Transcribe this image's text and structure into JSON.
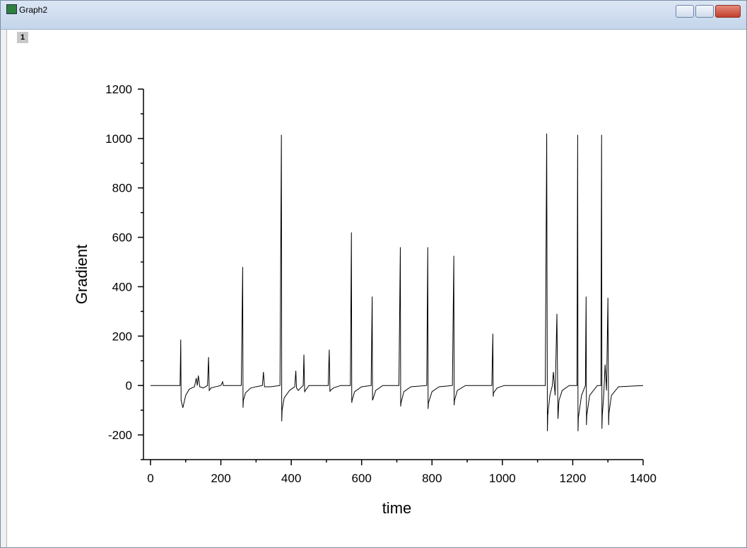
{
  "window": {
    "title": "Graph2",
    "layer": "1"
  },
  "chart_data": {
    "type": "line",
    "xlabel": "time",
    "ylabel": "Gradient",
    "x": [
      0,
      84,
      86,
      87,
      92,
      100,
      110,
      125,
      130,
      133,
      136,
      140,
      150,
      162,
      165,
      167,
      172,
      185,
      200,
      205,
      207,
      210,
      230,
      258,
      262,
      263,
      264,
      270,
      285,
      300,
      318,
      321,
      324,
      340,
      368,
      372,
      373,
      374,
      380,
      395,
      410,
      413,
      415,
      420,
      430,
      434,
      436,
      438,
      450,
      505,
      508,
      510,
      511,
      520,
      540,
      568,
      571,
      572,
      573,
      580,
      600,
      627,
      630,
      631,
      640,
      660,
      706,
      710,
      711,
      712,
      720,
      740,
      785,
      788,
      789,
      790,
      800,
      820,
      858,
      862,
      863,
      864,
      872,
      895,
      970,
      973,
      974,
      975,
      985,
      1005,
      1122,
      1126,
      1128,
      1129,
      1135,
      1142,
      1145,
      1150,
      1155,
      1158,
      1160,
      1161,
      1170,
      1190,
      1212,
      1214,
      1215,
      1216,
      1225,
      1236,
      1238,
      1239,
      1240,
      1248,
      1270,
      1280,
      1282,
      1283,
      1284,
      1288,
      1292,
      1296,
      1300,
      1302,
      1303,
      1310,
      1330,
      1400
    ],
    "series": [
      {
        "name": "Gradient",
        "color": "#000000",
        "values": [
          0,
          0,
          186,
          -60,
          -90,
          -40,
          -15,
          -5,
          30,
          0,
          40,
          -5,
          -10,
          0,
          115,
          -20,
          -10,
          -5,
          0,
          15,
          0,
          0,
          0,
          0,
          480,
          -90,
          -60,
          -30,
          -10,
          -5,
          0,
          55,
          -5,
          -5,
          0,
          1015,
          -145,
          -100,
          -50,
          -20,
          -5,
          60,
          -10,
          -20,
          -5,
          0,
          125,
          -25,
          0,
          0,
          145,
          -25,
          -20,
          -10,
          0,
          0,
          620,
          -70,
          -60,
          -25,
          -5,
          0,
          360,
          -60,
          -20,
          0,
          0,
          560,
          -85,
          -70,
          -25,
          -5,
          0,
          560,
          -95,
          -70,
          -25,
          -5,
          0,
          525,
          -80,
          -60,
          -20,
          0,
          0,
          210,
          -45,
          -30,
          -10,
          0,
          0,
          1020,
          -185,
          -120,
          -40,
          0,
          55,
          -40,
          290,
          -135,
          -80,
          -60,
          -20,
          0,
          0,
          1015,
          -185,
          -130,
          -40,
          0,
          360,
          -160,
          -120,
          -40,
          0,
          0,
          1015,
          -175,
          -120,
          -40,
          85,
          -20,
          355,
          -160,
          -110,
          -40,
          -5,
          0
        ]
      }
    ],
    "xlim": [
      -20,
      1400
    ],
    "ylim": [
      -300,
      1200
    ],
    "xticks": [
      0,
      200,
      400,
      600,
      800,
      1000,
      1200,
      1400
    ],
    "yticks": [
      -200,
      0,
      200,
      400,
      600,
      800,
      1000,
      1200
    ],
    "xminorticks": [
      100,
      300,
      500,
      700,
      900,
      1100,
      1300
    ],
    "yminorticks": [
      -300,
      -100,
      100,
      300,
      500,
      700,
      900,
      1100
    ],
    "grid": false
  }
}
